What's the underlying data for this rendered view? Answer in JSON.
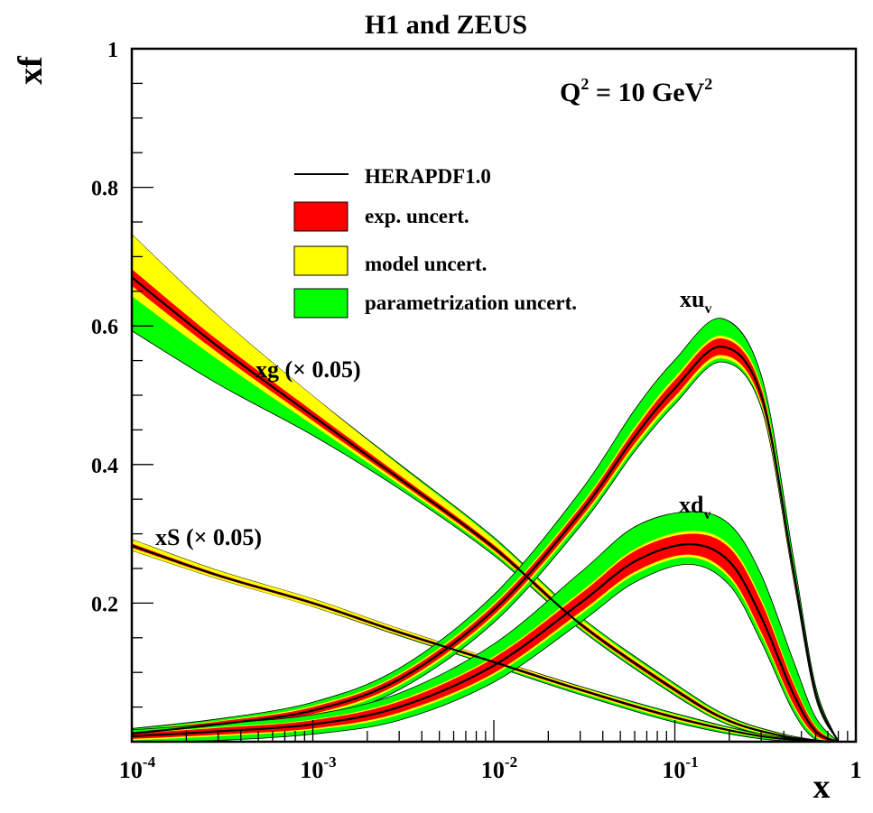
{
  "chart_data": {
    "type": "area",
    "title": "H1 and ZEUS",
    "annotation": "Q² = 10 GeV²",
    "annotation_parts": {
      "q": "Q",
      "q_sup": "2",
      "mid": " = 10 GeV",
      "gev_sup": "2"
    },
    "xlabel": "x",
    "ylabel": "xf",
    "xscale": "log",
    "xlim": [
      0.0001,
      1
    ],
    "ylim": [
      0,
      1
    ],
    "x_tick_labels": [
      {
        "base": "10",
        "exp": "-4",
        "value": 0.0001
      },
      {
        "base": "10",
        "exp": "-3",
        "value": 0.001
      },
      {
        "base": "10",
        "exp": "-2",
        "value": 0.01
      },
      {
        "base": "10",
        "exp": "-1",
        "value": 0.1
      },
      {
        "base": "1",
        "exp": "",
        "value": 1
      }
    ],
    "y_tick_labels": [
      {
        "label": "0.2",
        "value": 0.2
      },
      {
        "label": "0.4",
        "value": 0.4
      },
      {
        "label": "0.6",
        "value": 0.6
      },
      {
        "label": "0.8",
        "value": 0.8
      },
      {
        "label": "1",
        "value": 1
      }
    ],
    "grid": false,
    "legend": {
      "placement": "top-center",
      "entries": [
        {
          "label": "HERAPDF1.0",
          "kind": "line",
          "color": "#000000"
        },
        {
          "label": "exp. uncert.",
          "kind": "box",
          "color": "#ff0000"
        },
        {
          "label": "model uncert.",
          "kind": "box",
          "color": "#ffff00"
        },
        {
          "label": "parametrization uncert.",
          "kind": "box",
          "color": "#00ff00"
        }
      ]
    },
    "colors": {
      "central": "#000000",
      "exp": "#ff0000",
      "model": "#ffff00",
      "param": "#00ff00"
    },
    "series": [
      {
        "name": "xg",
        "label": "xg (× 0.05)",
        "x": [
          0.0001,
          0.0003,
          0.001,
          0.003,
          0.01,
          0.03,
          0.1,
          0.2,
          0.4,
          0.7
        ],
        "central": [
          0.67,
          0.57,
          0.47,
          0.38,
          0.28,
          0.17,
          0.075,
          0.03,
          0.008,
          0.0
        ],
        "exp": [
          0.012,
          0.009,
          0.007,
          0.005,
          0.004,
          0.003,
          0.003,
          0.002,
          0.001,
          0.0
        ],
        "model_up": [
          0.05,
          0.035,
          0.022,
          0.014,
          0.008,
          0.005,
          0.003,
          0.002,
          0.001,
          0.0
        ],
        "model_dn": [
          0.015,
          0.01,
          0.006,
          0.004,
          0.003,
          0.002,
          0.002,
          0.002,
          0.001,
          0.0
        ],
        "param_up": [
          0.0,
          0.0,
          0.0,
          0.002,
          0.003,
          0.003,
          0.003,
          0.002,
          0.001,
          0.0
        ],
        "param_dn": [
          0.05,
          0.035,
          0.015,
          0.006,
          0.004,
          0.003,
          0.003,
          0.002,
          0.001,
          0.0
        ]
      },
      {
        "name": "xS",
        "label": "xS (× 0.05)",
        "x": [
          0.0001,
          0.0003,
          0.001,
          0.003,
          0.01,
          0.03,
          0.1,
          0.3,
          0.7
        ],
        "central": [
          0.283,
          0.24,
          0.2,
          0.158,
          0.115,
          0.075,
          0.035,
          0.008,
          0.0
        ],
        "exp": [
          0.003,
          0.002,
          0.002,
          0.002,
          0.002,
          0.002,
          0.002,
          0.001,
          0.0
        ],
        "model_up": [
          0.006,
          0.005,
          0.004,
          0.003,
          0.002,
          0.002,
          0.002,
          0.001,
          0.0
        ],
        "model_dn": [
          0.004,
          0.003,
          0.003,
          0.002,
          0.002,
          0.002,
          0.002,
          0.001,
          0.0
        ],
        "param_up": [
          0.0,
          0.0,
          0.0,
          0.0,
          0.0,
          0.001,
          0.002,
          0.001,
          0.0
        ],
        "param_dn": [
          0.0,
          0.0,
          0.0,
          0.001,
          0.002,
          0.003,
          0.003,
          0.002,
          0.0
        ]
      },
      {
        "name": "xu_v",
        "label": "xu",
        "label_sub": "v",
        "x": [
          0.0001,
          0.0003,
          0.001,
          0.003,
          0.01,
          0.03,
          0.06,
          0.1,
          0.18,
          0.3,
          0.45,
          0.6,
          0.8
        ],
        "central": [
          0.012,
          0.025,
          0.045,
          0.09,
          0.19,
          0.33,
          0.44,
          0.51,
          0.57,
          0.5,
          0.25,
          0.07,
          0.0
        ],
        "exp": [
          0.004,
          0.004,
          0.005,
          0.006,
          0.007,
          0.008,
          0.01,
          0.012,
          0.012,
          0.01,
          0.006,
          0.003,
          0.0
        ],
        "model_up": [
          0.001,
          0.001,
          0.002,
          0.002,
          0.003,
          0.003,
          0.004,
          0.004,
          0.004,
          0.004,
          0.003,
          0.002,
          0.0
        ],
        "model_dn": [
          0.002,
          0.002,
          0.003,
          0.003,
          0.004,
          0.004,
          0.005,
          0.005,
          0.005,
          0.004,
          0.003,
          0.002,
          0.0
        ],
        "param_up": [
          0.002,
          0.003,
          0.005,
          0.008,
          0.012,
          0.02,
          0.025,
          0.025,
          0.025,
          0.015,
          0.01,
          0.005,
          0.0
        ],
        "param_dn": [
          0.006,
          0.006,
          0.006,
          0.006,
          0.007,
          0.007,
          0.006,
          0.006,
          0.005,
          0.004,
          0.003,
          0.002,
          0.0
        ]
      },
      {
        "name": "xd_v",
        "label": "xd",
        "label_sub": "v",
        "x": [
          0.0001,
          0.0003,
          0.001,
          0.003,
          0.01,
          0.03,
          0.06,
          0.12,
          0.2,
          0.3,
          0.45,
          0.6,
          0.8
        ],
        "central": [
          0.008,
          0.015,
          0.025,
          0.05,
          0.11,
          0.2,
          0.26,
          0.285,
          0.26,
          0.18,
          0.07,
          0.015,
          0.0
        ],
        "exp": [
          0.004,
          0.005,
          0.006,
          0.008,
          0.011,
          0.013,
          0.015,
          0.015,
          0.02,
          0.022,
          0.015,
          0.006,
          0.0
        ],
        "model_up": [
          0.001,
          0.001,
          0.001,
          0.002,
          0.002,
          0.003,
          0.003,
          0.004,
          0.004,
          0.004,
          0.003,
          0.002,
          0.0
        ],
        "model_dn": [
          0.002,
          0.002,
          0.002,
          0.003,
          0.003,
          0.004,
          0.004,
          0.004,
          0.004,
          0.004,
          0.003,
          0.002,
          0.0
        ],
        "param_up": [
          0.004,
          0.005,
          0.007,
          0.01,
          0.018,
          0.028,
          0.032,
          0.028,
          0.03,
          0.035,
          0.03,
          0.012,
          0.0
        ],
        "param_dn": [
          0.006,
          0.006,
          0.006,
          0.008,
          0.01,
          0.011,
          0.011,
          0.01,
          0.01,
          0.01,
          0.008,
          0.004,
          0.0
        ]
      }
    ]
  }
}
